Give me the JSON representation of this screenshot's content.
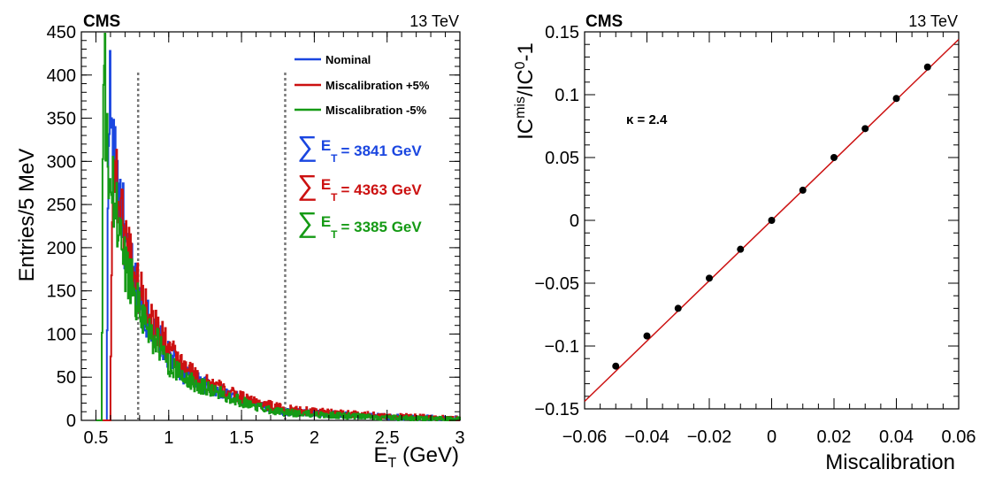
{
  "chart_data": [
    {
      "type": "histogram",
      "cms_label": "CMS",
      "energy_label": "13 TeV",
      "ylabel": "Entries/5 MeV",
      "xlabel_main": "E",
      "xlabel_sub": "T",
      "xlabel_tail": " (GeV)",
      "xlim": [
        0.4,
        3.0
      ],
      "ylim": [
        0,
        450
      ],
      "x_ticks": [
        "0.5",
        "1",
        "1.5",
        "2",
        "2.5",
        "3"
      ],
      "y_ticks": [
        "0",
        "50",
        "100",
        "150",
        "200",
        "250",
        "300",
        "350",
        "400",
        "450"
      ],
      "vertical_dashed_lines_x": [
        0.79,
        1.8
      ],
      "bin_width_gev": 0.005,
      "legend_position": "top-right",
      "series": [
        {
          "name": "Nominal",
          "color": "#1a46e0",
          "sum_label": "= 3841 GeV",
          "onset": 0.575,
          "envelope": [
            [
              0.575,
              0
            ],
            [
              0.58,
              190
            ],
            [
              0.585,
              300
            ],
            [
              0.59,
              410
            ],
            [
              0.61,
              320
            ],
            [
              0.63,
              290
            ],
            [
              0.65,
              275
            ],
            [
              0.68,
              245
            ],
            [
              0.71,
              190
            ],
            [
              0.75,
              170
            ],
            [
              0.79,
              140
            ],
            [
              0.85,
              120
            ],
            [
              0.9,
              105
            ],
            [
              1.0,
              75
            ],
            [
              1.1,
              55
            ],
            [
              1.2,
              45
            ],
            [
              1.3,
              38
            ],
            [
              1.4,
              30
            ],
            [
              1.5,
              24
            ],
            [
              1.6,
              18
            ],
            [
              1.8,
              10
            ],
            [
              2.0,
              8
            ],
            [
              2.5,
              4
            ],
            [
              3.0,
              2
            ]
          ]
        },
        {
          "name": "Miscalibration +5%",
          "color": "#cc1111",
          "sum_label": "= 4363 GeV",
          "onset": 0.6,
          "envelope": [
            [
              0.6,
              0
            ],
            [
              0.605,
              140
            ],
            [
              0.61,
              260
            ],
            [
              0.62,
              280
            ],
            [
              0.63,
              292
            ],
            [
              0.66,
              255
            ],
            [
              0.7,
              215
            ],
            [
              0.75,
              185
            ],
            [
              0.79,
              155
            ],
            [
              0.85,
              135
            ],
            [
              0.9,
              110
            ],
            [
              1.0,
              85
            ],
            [
              1.1,
              60
            ],
            [
              1.2,
              50
            ],
            [
              1.3,
              42
            ],
            [
              1.4,
              32
            ],
            [
              1.5,
              27
            ],
            [
              1.6,
              21
            ],
            [
              1.8,
              13
            ],
            [
              2.0,
              10
            ],
            [
              2.5,
              5
            ],
            [
              3.0,
              2
            ]
          ]
        },
        {
          "name": "Miscalibration -5%",
          "color": "#159a15",
          "sum_label": "= 3385 GeV",
          "onset": 0.54,
          "envelope": [
            [
              0.54,
              0
            ],
            [
              0.545,
              200
            ],
            [
              0.55,
              370
            ],
            [
              0.56,
              432
            ],
            [
              0.57,
              310
            ],
            [
              0.59,
              290
            ],
            [
              0.62,
              255
            ],
            [
              0.66,
              225
            ],
            [
              0.7,
              180
            ],
            [
              0.75,
              160
            ],
            [
              0.79,
              135
            ],
            [
              0.85,
              112
            ],
            [
              0.9,
              95
            ],
            [
              1.0,
              66
            ],
            [
              1.1,
              50
            ],
            [
              1.2,
              42
            ],
            [
              1.3,
              35
            ],
            [
              1.4,
              28
            ],
            [
              1.5,
              22
            ],
            [
              1.6,
              16
            ],
            [
              1.8,
              9
            ],
            [
              2.0,
              7
            ],
            [
              2.5,
              3
            ],
            [
              3.0,
              1
            ]
          ]
        }
      ]
    },
    {
      "type": "scatter",
      "cms_label": "CMS",
      "energy_label": "13 TeV",
      "xlabel": "Miscalibration",
      "ylabel_parts": [
        "IC",
        "mis",
        "/IC",
        "0",
        "-1"
      ],
      "annotation": "κ = 2.4",
      "xlim": [
        -0.06,
        0.06
      ],
      "ylim": [
        -0.15,
        0.15
      ],
      "x_ticks": [
        "−0.06",
        "−0.04",
        "−0.02",
        "0",
        "0.02",
        "0.04",
        "0.06"
      ],
      "y_ticks": [
        "−0.15",
        "−0.1",
        "−0.05",
        "0",
        "0.05",
        "0.1",
        "0.15"
      ],
      "points": [
        {
          "x": -0.05,
          "y": -0.116
        },
        {
          "x": -0.04,
          "y": -0.092
        },
        {
          "x": -0.03,
          "y": -0.07
        },
        {
          "x": -0.02,
          "y": -0.046
        },
        {
          "x": -0.01,
          "y": -0.023
        },
        {
          "x": 0.0,
          "y": 0.0
        },
        {
          "x": 0.01,
          "y": 0.024
        },
        {
          "x": 0.02,
          "y": 0.05
        },
        {
          "x": 0.03,
          "y": 0.073
        },
        {
          "x": 0.04,
          "y": 0.097
        },
        {
          "x": 0.05,
          "y": 0.122
        }
      ],
      "fit_line": {
        "color": "#cc1111",
        "slope": 2.4,
        "intercept": 0.0
      }
    }
  ]
}
